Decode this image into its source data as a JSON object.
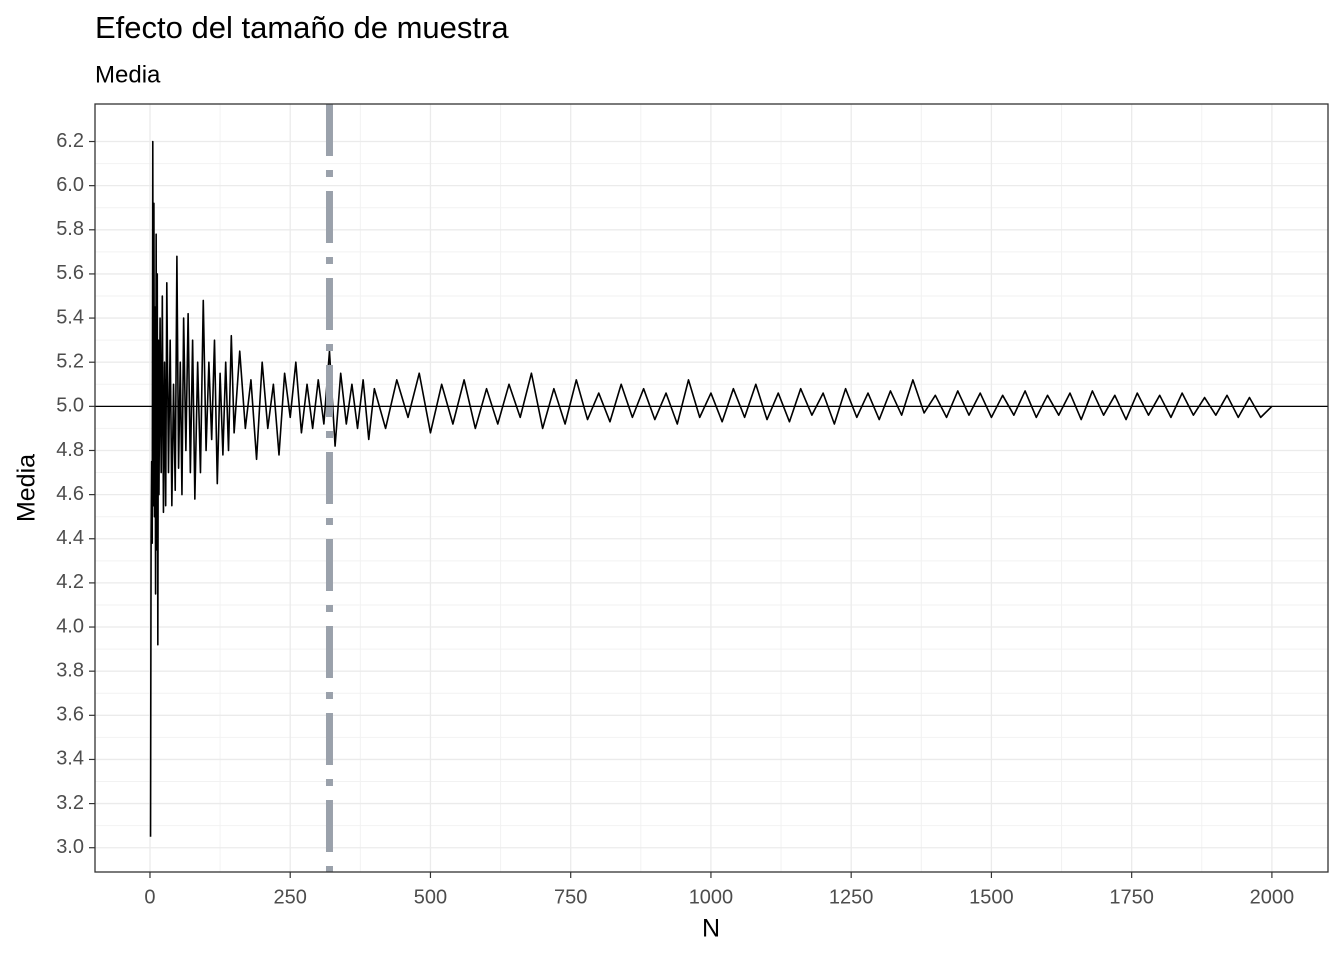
{
  "chart_data": {
    "type": "line",
    "title": "Efecto del tamaño de muestra",
    "subtitle": "Media",
    "x_label": "N",
    "y_label": "Media",
    "color": "#000000",
    "x": [
      1,
      2,
      3,
      4,
      5,
      6,
      7,
      8,
      9,
      10,
      11,
      12,
      13,
      14,
      15,
      16,
      18,
      20,
      22,
      24,
      26,
      28,
      30,
      33,
      36,
      39,
      42,
      45,
      48,
      51,
      54,
      57,
      60,
      64,
      68,
      72,
      76,
      80,
      85,
      90,
      95,
      100,
      105,
      110,
      115,
      120,
      125,
      130,
      135,
      140,
      145,
      150,
      160,
      170,
      180,
      190,
      200,
      210,
      220,
      230,
      240,
      250,
      260,
      270,
      280,
      290,
      300,
      310,
      320,
      330,
      340,
      350,
      360,
      370,
      380,
      390,
      400,
      420,
      440,
      460,
      480,
      500,
      520,
      540,
      560,
      580,
      600,
      620,
      640,
      660,
      680,
      700,
      720,
      740,
      760,
      780,
      800,
      820,
      840,
      860,
      880,
      900,
      920,
      940,
      960,
      980,
      1000,
      1020,
      1040,
      1060,
      1080,
      1100,
      1120,
      1140,
      1160,
      1180,
      1200,
      1220,
      1240,
      1260,
      1280,
      1300,
      1320,
      1340,
      1360,
      1380,
      1400,
      1420,
      1440,
      1460,
      1480,
      1500,
      1520,
      1540,
      1560,
      1580,
      1600,
      1620,
      1640,
      1660,
      1680,
      1700,
      1720,
      1740,
      1760,
      1780,
      1800,
      1820,
      1840,
      1860,
      1880,
      1900,
      1920,
      1940,
      1960,
      1980,
      2000
    ],
    "values": [
      3.05,
      4.4,
      4.75,
      4.38,
      6.2,
      4.55,
      5.92,
      4.5,
      5.45,
      4.15,
      5.78,
      4.35,
      5.6,
      3.92,
      5.3,
      4.6,
      5.4,
      4.7,
      5.5,
      4.52,
      5.2,
      4.55,
      5.56,
      4.7,
      5.3,
      4.55,
      5.1,
      4.62,
      5.68,
      4.72,
      5.2,
      4.6,
      5.4,
      4.8,
      5.42,
      4.7,
      5.3,
      4.58,
      5.2,
      4.7,
      5.48,
      4.8,
      5.2,
      4.85,
      5.3,
      4.65,
      5.15,
      4.78,
      5.2,
      4.8,
      5.32,
      4.88,
      5.25,
      4.9,
      5.12,
      4.76,
      5.2,
      4.9,
      5.1,
      4.78,
      5.15,
      4.95,
      5.2,
      4.88,
      5.1,
      4.9,
      5.12,
      4.92,
      5.25,
      4.82,
      5.15,
      4.92,
      5.1,
      4.9,
      5.12,
      4.85,
      5.08,
      4.9,
      5.12,
      4.95,
      5.15,
      4.88,
      5.1,
      4.92,
      5.12,
      4.9,
      5.08,
      4.92,
      5.1,
      4.95,
      5.15,
      4.9,
      5.08,
      4.92,
      5.12,
      4.94,
      5.06,
      4.93,
      5.1,
      4.95,
      5.08,
      4.94,
      5.06,
      4.92,
      5.12,
      4.95,
      5.06,
      4.93,
      5.08,
      4.95,
      5.1,
      4.94,
      5.06,
      4.93,
      5.08,
      4.96,
      5.06,
      4.92,
      5.08,
      4.95,
      5.06,
      4.94,
      5.07,
      4.96,
      5.12,
      4.97,
      5.05,
      4.95,
      5.07,
      4.96,
      5.06,
      4.95,
      5.05,
      4.96,
      5.07,
      4.95,
      5.05,
      4.96,
      5.06,
      4.94,
      5.07,
      4.96,
      5.05,
      4.94,
      5.06,
      4.96,
      5.05,
      4.95,
      5.06,
      4.96,
      5.04,
      4.96,
      5.05,
      4.95,
      5.04,
      4.95,
      5.0
    ],
    "hline": 5,
    "vline": 320,
    "vline_color": "#9aa1ab",
    "xlim": [
      -98,
      2100
    ],
    "ylim": [
      2.89,
      6.37
    ],
    "xticks": [
      0,
      250,
      500,
      750,
      1000,
      1250,
      1500,
      1750,
      2000
    ],
    "yticks": [
      {
        "value": 3.0,
        "label": "3.0"
      },
      {
        "value": 3.2,
        "label": "3.2"
      },
      {
        "value": 3.4,
        "label": "3.4"
      },
      {
        "value": 3.6,
        "label": "3.6"
      },
      {
        "value": 3.8,
        "label": "3.8"
      },
      {
        "value": 4.0,
        "label": "4.0"
      },
      {
        "value": 4.2,
        "label": "4.2"
      },
      {
        "value": 4.4,
        "label": "4.4"
      },
      {
        "value": 4.6,
        "label": "4.6"
      },
      {
        "value": 4.8,
        "label": "4.8"
      },
      {
        "value": 5.0,
        "label": "5.0"
      },
      {
        "value": 5.2,
        "label": "5.2"
      },
      {
        "value": 5.4,
        "label": "5.4"
      },
      {
        "value": 5.6,
        "label": "5.6"
      },
      {
        "value": 5.8,
        "label": "5.8"
      },
      {
        "value": 6.0,
        "label": "6.0"
      },
      {
        "value": 6.2,
        "label": "6.2"
      }
    ],
    "grid": true
  }
}
